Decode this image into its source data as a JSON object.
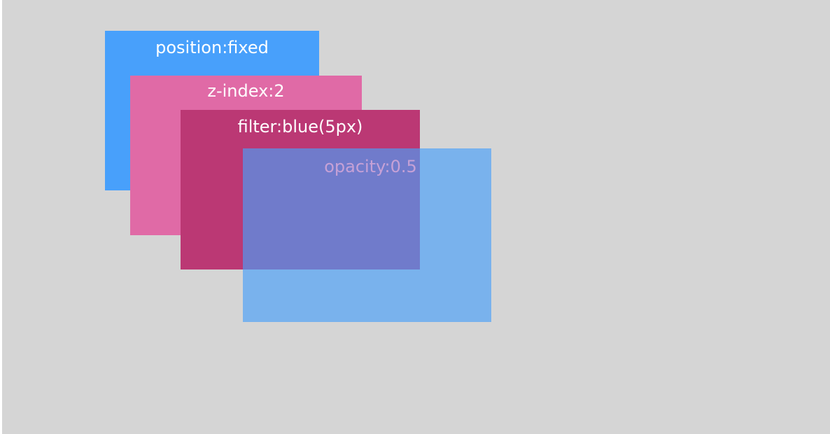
{
  "colors": {
    "background": "#d5d5d5",
    "fixed_layer": "#48a0fb",
    "zindex_layer": "#e06aa6",
    "filter_layer": "#bb3874",
    "opacity_layer": "rgba(72, 160, 251, 0.65)",
    "label_light": "#ffffff",
    "label_dim": "#c6a1d6"
  },
  "layers": [
    {
      "label": "position:fixed"
    },
    {
      "label": "z-index:2"
    },
    {
      "label": "filter:blue(5px)"
    },
    {
      "label": "opacity:0.5"
    }
  ]
}
